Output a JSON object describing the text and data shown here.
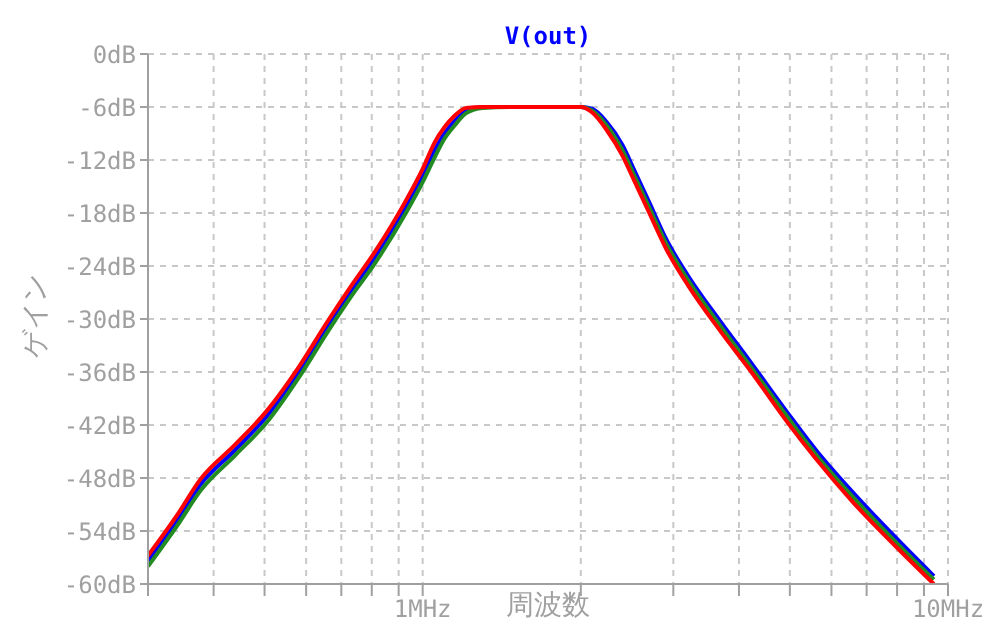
{
  "chart_data": {
    "type": "line",
    "title": "V(out)",
    "xlabel": "周波数",
    "ylabel": "ゲイン",
    "log": "x",
    "grid": true,
    "marker": "none",
    "line_style": "solid",
    "x": [
      0.3,
      0.34,
      0.378,
      0.44,
      0.505,
      0.58,
      0.657,
      0.73,
      0.811,
      0.933,
      1.0,
      1.054,
      1.1,
      1.15,
      1.21,
      1.3,
      1.5,
      2.0,
      2.1,
      2.24,
      2.4,
      2.53,
      2.7,
      2.91,
      3.2,
      3.69,
      4.2,
      4.92,
      5.6,
      6.63,
      8.0,
      9.4
    ],
    "series": [
      {
        "color": "#0000ff",
        "values": [
          -57.4,
          -52.9,
          -48.7,
          -44.8,
          -41.0,
          -36.1,
          -31.0,
          -26.9,
          -23.0,
          -17.1,
          -13.8,
          -10.9,
          -9.0,
          -7.6,
          -6.4,
          -6.0,
          -6,
          -6,
          -6.2,
          -7.7,
          -10.3,
          -13.2,
          -16.8,
          -21.0,
          -25.1,
          -30.3,
          -34.8,
          -40.4,
          -44.8,
          -49.8,
          -54.9,
          -59.1
        ]
      },
      {
        "color": "#228b22",
        "values": [
          -58.0,
          -53.5,
          -49.4,
          -45.4,
          -41.7,
          -36.7,
          -31.6,
          -27.5,
          -23.7,
          -17.8,
          -14.5,
          -11.7,
          -9.6,
          -8.1,
          -6.7,
          -6.1,
          -6,
          -6,
          -6.4,
          -8.1,
          -10.9,
          -13.8,
          -17.4,
          -21.5,
          -25.6,
          -30.8,
          -35.3,
          -40.9,
          -45.3,
          -50.3,
          -55.4,
          -59.5
        ]
      },
      {
        "color": "#ff0000",
        "values": [
          -56.8,
          -52.3,
          -48.1,
          -44.2,
          -40.4,
          -35.5,
          -30.4,
          -26.3,
          -22.4,
          -16.4,
          -13.0,
          -10.0,
          -8.3,
          -7.0,
          -6.1,
          -6.0,
          -6,
          -6,
          -6.6,
          -8.6,
          -11.5,
          -14.4,
          -18.0,
          -22.1,
          -26.2,
          -31.4,
          -35.8,
          -41.5,
          -45.8,
          -50.9,
          -55.9,
          -60
        ]
      }
    ],
    "xlim": [
      0.3,
      10
    ],
    "xticks": [
      {
        "value": 0.3,
        "label": null
      },
      {
        "value": 0.4,
        "label": null
      },
      {
        "value": 0.5,
        "label": null
      },
      {
        "value": 0.6,
        "label": null
      },
      {
        "value": 0.7,
        "label": null
      },
      {
        "value": 0.8,
        "label": null
      },
      {
        "value": 0.9,
        "label": null
      },
      {
        "value": 1,
        "label": "1MHz"
      },
      {
        "value": 2,
        "label": null
      },
      {
        "value": 3,
        "label": null
      },
      {
        "value": 4,
        "label": null
      },
      {
        "value": 5,
        "label": null
      },
      {
        "value": 6,
        "label": null
      },
      {
        "value": 7,
        "label": null
      },
      {
        "value": 8,
        "label": null
      },
      {
        "value": 9,
        "label": null
      },
      {
        "value": 10,
        "label": "10MHz"
      }
    ],
    "ylim": [
      -60,
      0
    ],
    "yticks": [
      {
        "value": 0,
        "label": "0dB"
      },
      {
        "value": -6,
        "label": "-6dB"
      },
      {
        "value": -12,
        "label": "-12dB"
      },
      {
        "value": -18,
        "label": "-18dB"
      },
      {
        "value": -24,
        "label": "-24dB"
      },
      {
        "value": -30,
        "label": "-30dB"
      },
      {
        "value": -36,
        "label": "-36dB"
      },
      {
        "value": -42,
        "label": "-42dB"
      },
      {
        "value": -48,
        "label": "-48dB"
      },
      {
        "value": -54,
        "label": "-54dB"
      },
      {
        "value": -60,
        "label": "-60dB"
      }
    ]
  }
}
